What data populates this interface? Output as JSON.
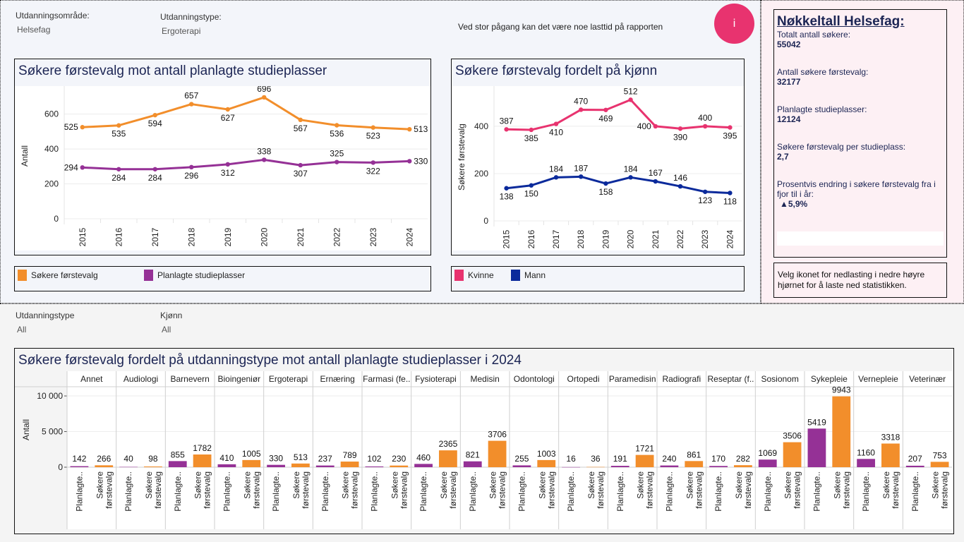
{
  "filters_top": {
    "area": {
      "label": "Utdanningsområde:",
      "value": "Helsefag"
    },
    "type": {
      "label": "Utdanningstype:",
      "value": "Ergoterapi"
    }
  },
  "notice": "Ved stor pågang kan det være noe lasttid på rapporten",
  "info_button": {
    "label": "i",
    "color": "#e8336f"
  },
  "kpi": {
    "title": "Nøkkeltall Helsefag:",
    "items": [
      {
        "label": "Totalt antall søkere:",
        "value": "55042"
      },
      {
        "label": "Antall søkere førstevalg:",
        "value": "32177"
      },
      {
        "label": "Planlagte studieplasser:",
        "value": "12124"
      },
      {
        "label": "Søkere førstevalg per studieplass:",
        "value": "2,7"
      },
      {
        "label": "Prosentvis endring i søkere førstevalg fra i fjor til i år:",
        "value": "▲5,9%"
      }
    ],
    "hint": "Velg ikonet for nedlasting i nedre høyre hjørnet for å laste ned statistikken."
  },
  "legend1": [
    {
      "label": "Søkere førstevalg",
      "color": "#f28e2b"
    },
    {
      "label": "Planlagte studieplasser",
      "color": "#953196"
    }
  ],
  "legend2": [
    {
      "label": "Kvinne",
      "color": "#e8336f"
    },
    {
      "label": "Mann",
      "color": "#0b2a9b"
    }
  ],
  "filters_bottom": {
    "type": {
      "label": "Utdanningstype",
      "value": "All"
    },
    "gender": {
      "label": "Kjønn",
      "value": "All"
    }
  },
  "chart_data": [
    {
      "type": "line",
      "title": "Søkere førstevalg mot antall planlagte studieplasser",
      "xlabel": "",
      "ylabel": "Antall",
      "x": [
        "2015",
        "2016",
        "2017",
        "2018",
        "2019",
        "2020",
        "2021",
        "2022",
        "2023",
        "2024"
      ],
      "yticks": [
        0,
        200,
        400,
        600
      ],
      "ylim": [
        0,
        720
      ],
      "grid": true,
      "series": [
        {
          "name": "Søkere førstevalg",
          "color": "#f28e2b",
          "values": [
            525,
            535,
            594,
            657,
            627,
            696,
            567,
            536,
            523,
            513
          ]
        },
        {
          "name": "Planlagte studieplasser",
          "color": "#953196",
          "values": [
            294,
            284,
            284,
            296,
            312,
            338,
            307,
            325,
            322,
            330
          ]
        }
      ]
    },
    {
      "type": "line",
      "title": "Søkere førstevalg fordelt på kjønn",
      "xlabel": "",
      "ylabel": "Søkere førstevalg",
      "x": [
        "2015",
        "2016",
        "2017",
        "2018",
        "2019",
        "2020",
        "2021",
        "2022",
        "2023",
        "2024"
      ],
      "yticks": [
        0,
        200,
        400
      ],
      "ylim": [
        0,
        540
      ],
      "grid": true,
      "series": [
        {
          "name": "Kvinne",
          "color": "#e8336f",
          "values": [
            387,
            385,
            410,
            470,
            469,
            512,
            400,
            390,
            400,
            395
          ]
        },
        {
          "name": "Mann",
          "color": "#0b2a9b",
          "values": [
            138,
            150,
            184,
            187,
            158,
            184,
            167,
            146,
            123,
            118
          ]
        }
      ]
    },
    {
      "type": "bar",
      "title": "Søkere førstevalg fordelt på utdanningstype mot antall planlagte studieplasser i 2024",
      "xlabel": "",
      "ylabel": "Antall",
      "yticks": [
        0,
        5000,
        10000
      ],
      "ytick_labels": [
        "0",
        "5 000",
        "10 000"
      ],
      "ylim": [
        0,
        10500
      ],
      "grid": true,
      "bar_labels": [
        "Planlagte..",
        "Søkere førstevalg"
      ],
      "categories": [
        "Annet",
        "Audiologi",
        "Barnevern",
        "Bioingeniør",
        "Ergoterapi",
        "Ernæring",
        "Farmasi (fe..",
        "Fysioterapi",
        "Medisin",
        "Odontologi",
        "Ortopedi",
        "Paramedisin",
        "Radiografi",
        "Reseptar (f..",
        "Sosionom",
        "Sykepleie",
        "Vernepleie",
        "Veterinær"
      ],
      "series": [
        {
          "name": "Planlagte studieplasser",
          "color": "#953196",
          "values": [
            142,
            40,
            855,
            410,
            330,
            237,
            102,
            460,
            821,
            255,
            16,
            191,
            240,
            170,
            1069,
            5419,
            1160,
            207
          ]
        },
        {
          "name": "Søkere førstevalg",
          "color": "#f28e2b",
          "values": [
            266,
            98,
            1782,
            1005,
            513,
            789,
            230,
            2365,
            3706,
            1003,
            36,
            1721,
            861,
            282,
            3506,
            9943,
            3318,
            753
          ]
        }
      ]
    }
  ]
}
